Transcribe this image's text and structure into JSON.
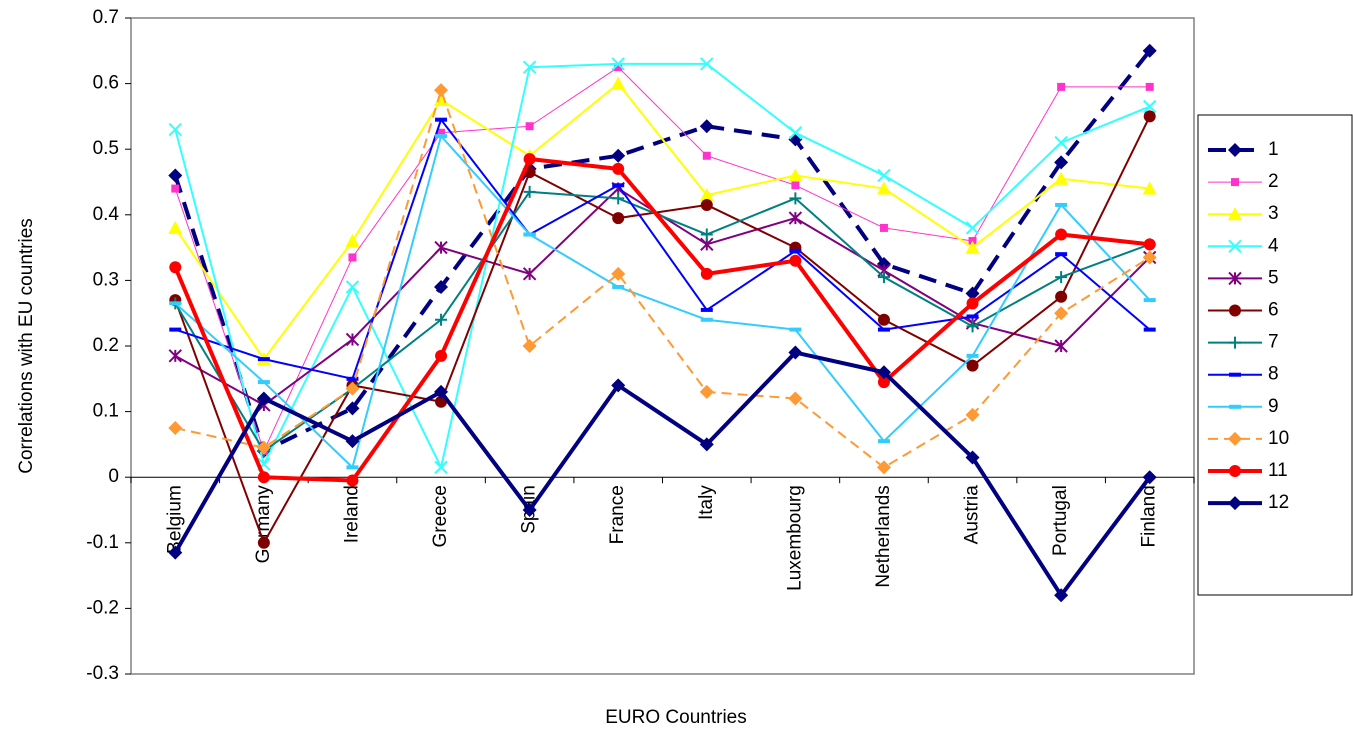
{
  "chart_data": {
    "type": "line",
    "x_label": "EURO Countries",
    "y_label": "Correlations with EU countries",
    "categories": [
      "Belgium",
      "Germany",
      "Ireland",
      "Greece",
      "Spain",
      "France",
      "Italy",
      "Luxembourg",
      "Netherlands",
      "Austria",
      "Portugal",
      "Finland"
    ],
    "ylim": [
      -0.3,
      0.7
    ],
    "yticks": [
      -0.3,
      -0.2,
      -0.1,
      0,
      0.1,
      0.2,
      0.3,
      0.4,
      0.5,
      0.6,
      0.7
    ],
    "legend": "right",
    "series": [
      {
        "name": "1",
        "color": "#000080",
        "marker": "diamond",
        "line": "thick-dashed",
        "values": [
          0.46,
          0.04,
          0.105,
          0.29,
          0.47,
          0.49,
          0.535,
          0.515,
          0.325,
          0.28,
          0.48,
          0.65
        ]
      },
      {
        "name": "2",
        "color": "#ff33cc",
        "marker": "square",
        "line": "thin",
        "values": [
          0.44,
          0.04,
          0.335,
          0.525,
          0.535,
          0.625,
          0.49,
          0.445,
          0.38,
          0.36,
          0.595,
          0.595
        ]
      },
      {
        "name": "3",
        "color": "#ffff00",
        "marker": "triangle",
        "line": "solid",
        "values": [
          0.38,
          0.18,
          0.36,
          0.575,
          0.49,
          0.6,
          0.43,
          0.46,
          0.44,
          0.35,
          0.455,
          0.44
        ]
      },
      {
        "name": "4",
        "color": "#33ffff",
        "marker": "cross",
        "line": "solid",
        "values": [
          0.53,
          0.02,
          0.29,
          0.015,
          0.625,
          0.63,
          0.63,
          0.525,
          0.46,
          0.38,
          0.51,
          0.565
        ]
      },
      {
        "name": "5",
        "color": "#800080",
        "marker": "star",
        "line": "solid",
        "values": [
          0.185,
          0.11,
          0.21,
          0.35,
          0.31,
          0.44,
          0.355,
          0.395,
          0.315,
          0.235,
          0.2,
          0.335
        ]
      },
      {
        "name": "6",
        "color": "#800000",
        "marker": "circle",
        "line": "solid",
        "values": [
          0.27,
          -0.1,
          0.14,
          0.115,
          0.465,
          0.395,
          0.415,
          0.35,
          0.24,
          0.17,
          0.275,
          0.55
        ]
      },
      {
        "name": "7",
        "color": "#008080",
        "marker": "plus",
        "line": "solid",
        "values": [
          0.265,
          0.04,
          0.135,
          0.24,
          0.435,
          0.425,
          0.37,
          0.425,
          0.305,
          0.23,
          0.305,
          0.355
        ]
      },
      {
        "name": "8",
        "color": "#0000ff",
        "marker": "dash",
        "line": "solid",
        "values": [
          0.225,
          0.18,
          0.15,
          0.545,
          0.37,
          0.445,
          0.255,
          0.345,
          0.225,
          0.245,
          0.34,
          0.225
        ]
      },
      {
        "name": "9",
        "color": "#33ccff",
        "marker": "dash",
        "line": "solid",
        "values": [
          0.265,
          0.145,
          0.015,
          0.52,
          0.37,
          0.29,
          0.24,
          0.225,
          0.055,
          0.185,
          0.415,
          0.27
        ]
      },
      {
        "name": "10",
        "color": "#ff9933",
        "marker": "diamond",
        "line": "dashed",
        "values": [
          0.075,
          0.045,
          0.135,
          0.59,
          0.2,
          0.31,
          0.13,
          0.12,
          0.015,
          0.095,
          0.25,
          0.335
        ]
      },
      {
        "name": "11",
        "color": "#ff0000",
        "marker": "circle",
        "line": "thick",
        "values": [
          0.32,
          0.0,
          -0.005,
          0.185,
          0.485,
          0.47,
          0.31,
          0.33,
          0.145,
          0.265,
          0.37,
          0.355
        ]
      },
      {
        "name": "12",
        "color": "#000080",
        "marker": "diamond",
        "line": "thick",
        "values": [
          -0.115,
          0.12,
          0.055,
          0.13,
          -0.05,
          0.14,
          0.05,
          0.19,
          0.16,
          0.03,
          -0.18,
          0.0
        ]
      }
    ]
  }
}
